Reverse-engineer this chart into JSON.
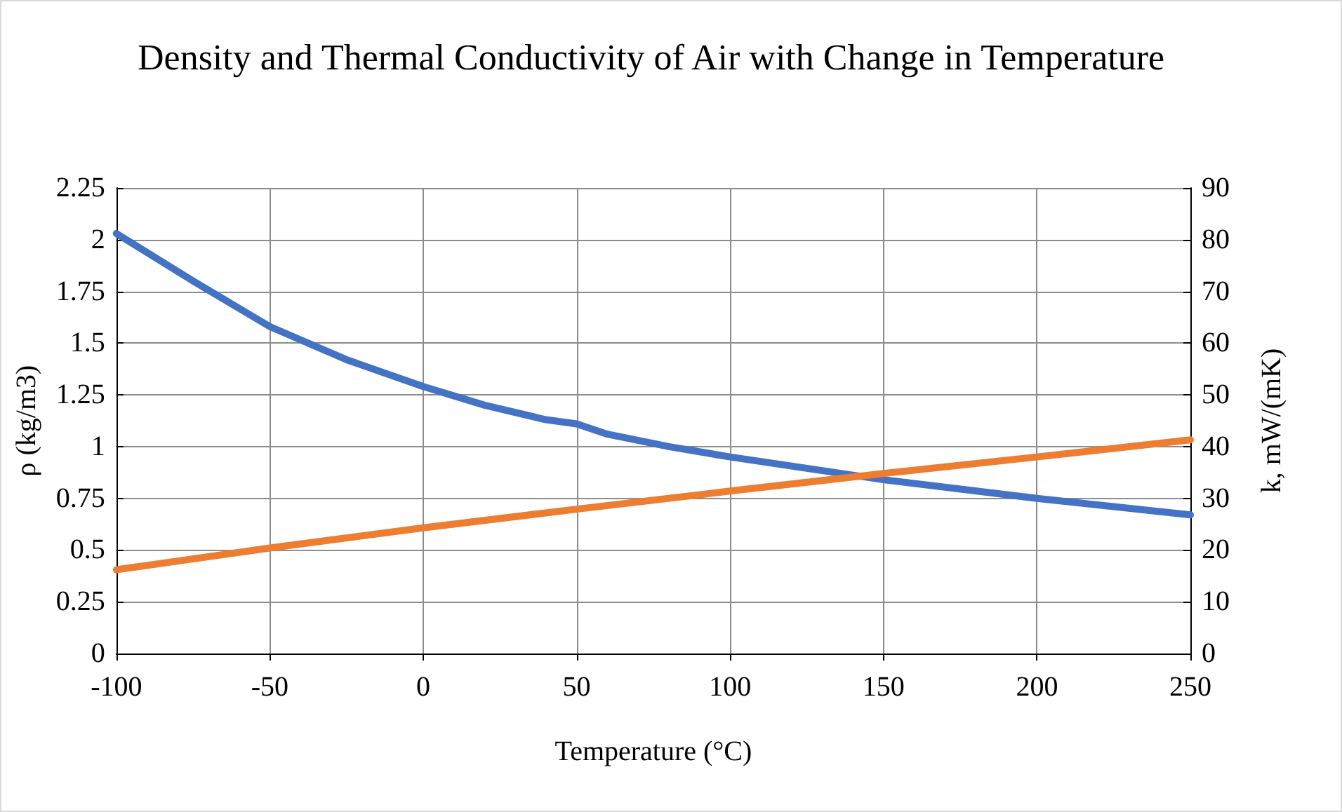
{
  "chart_data": {
    "type": "line",
    "title": "Density and Thermal Conductivity of Air with Change in Temperature",
    "xlabel": "Temperature (°C)",
    "ylabel": "ρ (kg/m3)",
    "y2label": "k, mW/(mK)",
    "x": [
      -100,
      -75,
      -50,
      -25,
      0,
      20,
      40,
      50,
      60,
      80,
      100,
      150,
      200,
      250
    ],
    "series": [
      {
        "color": "#4472c4",
        "values": [
          2.03,
          1.8,
          1.58,
          1.42,
          1.29,
          1.2,
          1.13,
          1.11,
          1.06,
          1.0,
          0.95,
          0.84,
          0.75,
          0.67
        ]
      },
      {
        "color": "#ed7d31",
        "axis": "y2",
        "x": [
          -100,
          -50,
          0,
          50,
          100,
          150,
          200,
          250
        ],
        "values": [
          16.2,
          20.4,
          24.3,
          27.9,
          31.4,
          34.8,
          38.0,
          41.3
        ]
      }
    ],
    "xlim": [
      -100,
      250
    ],
    "xticks": [
      -100,
      -50,
      0,
      50,
      100,
      150,
      200,
      250
    ],
    "ylim": [
      0,
      2.25
    ],
    "yticks": [
      0,
      0.25,
      0.5,
      0.75,
      1,
      1.25,
      1.5,
      1.75,
      2,
      2.25
    ],
    "y2lim": [
      0,
      90
    ],
    "y2ticks": [
      0,
      10,
      20,
      30,
      40,
      50,
      60,
      70,
      80,
      90
    ],
    "grid": true,
    "marker": "none",
    "line_style": "solid"
  }
}
